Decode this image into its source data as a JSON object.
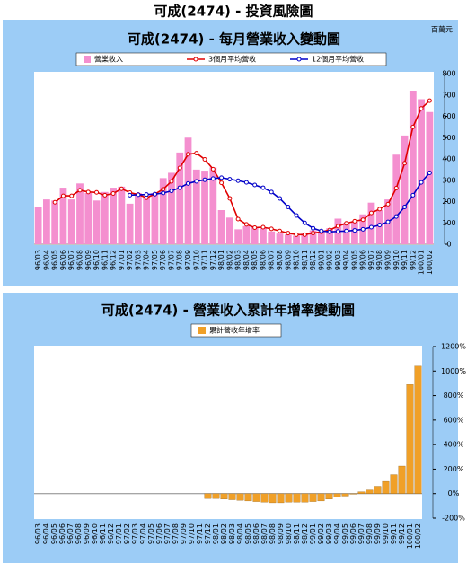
{
  "header": "可成(2474) - 投資風險圖",
  "chart_data": [
    {
      "type": "bar",
      "title": "可成(2474) - 每月營業收入變動圖",
      "y_label": "百萬元",
      "categories": [
        "96/03",
        "96/04",
        "96/05",
        "96/06",
        "96/07",
        "96/08",
        "96/09",
        "96/10",
        "96/11",
        "96/12",
        "97/01",
        "97/02",
        "97/03",
        "97/04",
        "97/05",
        "97/06",
        "97/07",
        "97/08",
        "97/09",
        "97/10",
        "97/11",
        "97/12",
        "98/01",
        "98/02",
        "98/03",
        "98/04",
        "98/05",
        "98/06",
        "98/07",
        "98/08",
        "98/09",
        "98/10",
        "98/11",
        "98/12",
        "99/01",
        "99/02",
        "99/03",
        "99/04",
        "99/05",
        "99/06",
        "99/07",
        "99/08",
        "99/09",
        "99/10",
        "99/11",
        "99/12",
        "100/01",
        "100/02"
      ],
      "series": [
        {
          "name": "營業收入",
          "color": "#f48fcf",
          "values": [
            175,
            210,
            205,
            265,
            210,
            285,
            240,
            205,
            245,
            265,
            270,
            190,
            240,
            225,
            240,
            310,
            335,
            430,
            500,
            350,
            345,
            360,
            160,
            125,
            70,
            85,
            80,
            75,
            60,
            50,
            45,
            40,
            50,
            65,
            60,
            75,
            120,
            100,
            105,
            140,
            195,
            160,
            210,
            420,
            510,
            720,
            680,
            620
          ]
        },
        {
          "name": "3個月平均營收",
          "type": "line",
          "color": "#e00000",
          "values": [
            null,
            null,
            197,
            227,
            227,
            253,
            245,
            243,
            230,
            238,
            260,
            242,
            233,
            218,
            235,
            258,
            295,
            358,
            422,
            427,
            398,
            352,
            288,
            215,
            118,
            93,
            78,
            80,
            72,
            62,
            52,
            45,
            45,
            52,
            58,
            67,
            85,
            98,
            108,
            115,
            147,
            165,
            188,
            263,
            380,
            550,
            637,
            673
          ]
        },
        {
          "name": "12個月平均營收",
          "type": "line",
          "color": "#0000c8",
          "values": [
            null,
            null,
            null,
            null,
            null,
            null,
            null,
            null,
            null,
            null,
            null,
            230,
            232,
            233,
            235,
            240,
            250,
            265,
            285,
            295,
            302,
            308,
            312,
            305,
            298,
            290,
            278,
            265,
            245,
            215,
            175,
            135,
            100,
            75,
            62,
            58,
            60,
            62,
            65,
            70,
            80,
            90,
            105,
            130,
            175,
            230,
            290,
            335
          ]
        }
      ],
      "ylim": [
        0,
        800
      ],
      "yticks": [
        0,
        100,
        200,
        300,
        400,
        500,
        600,
        700,
        800
      ],
      "grid": false
    },
    {
      "type": "bar",
      "title": "可成(2474) - 營業收入累計年增率變動圖",
      "categories": [
        "96/03",
        "96/04",
        "96/05",
        "96/06",
        "96/07",
        "96/08",
        "96/09",
        "96/10",
        "96/11",
        "96/12",
        "97/01",
        "97/02",
        "97/03",
        "97/04",
        "97/05",
        "97/06",
        "97/07",
        "97/08",
        "97/09",
        "97/10",
        "97/11",
        "97/12",
        "98/01",
        "98/02",
        "98/03",
        "98/04",
        "98/05",
        "98/06",
        "98/07",
        "98/08",
        "98/09",
        "98/10",
        "98/11",
        "98/12",
        "99/01",
        "99/02",
        "99/03",
        "99/04",
        "99/05",
        "99/06",
        "99/07",
        "99/08",
        "99/09",
        "99/10",
        "99/11",
        "99/12",
        "100/01",
        "100/02"
      ],
      "series": [
        {
          "name": "累計營收年增率",
          "color": "#f0a028",
          "values": [
            null,
            null,
            null,
            null,
            null,
            null,
            null,
            null,
            null,
            null,
            null,
            null,
            null,
            null,
            null,
            null,
            null,
            null,
            null,
            null,
            null,
            -40,
            -40,
            -45,
            -50,
            -55,
            -60,
            -65,
            -70,
            -75,
            -75,
            -70,
            -70,
            -70,
            -65,
            -60,
            -45,
            -30,
            -20,
            -5,
            15,
            30,
            60,
            100,
            155,
            225,
            890,
            1040
          ]
        }
      ],
      "ylim": [
        -200,
        1200
      ],
      "yticks": [
        {
          "value": -200,
          "label": "-200%"
        },
        {
          "value": 0,
          "label": "0%"
        },
        {
          "value": 200,
          "label": "200%"
        },
        {
          "value": 400,
          "label": "400%"
        },
        {
          "value": 600,
          "label": "600%"
        },
        {
          "value": 800,
          "label": "800%"
        },
        {
          "value": 1000,
          "label": "1000%"
        },
        {
          "value": 1200,
          "label": "1200%"
        }
      ],
      "grid": false
    }
  ]
}
